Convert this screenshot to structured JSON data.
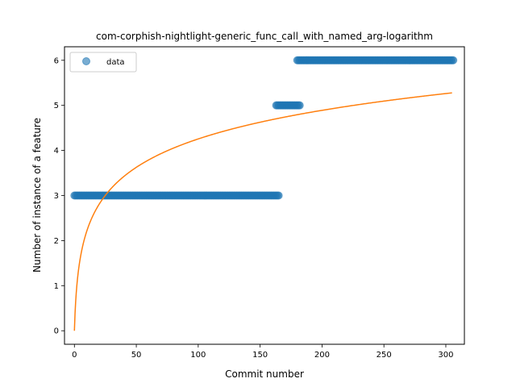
{
  "chart_data": {
    "type": "scatter",
    "title": "com-corphish-nightlight-generic_func_call_with_named_arg-logarithm",
    "xlabel": "Commit number",
    "ylabel": "Number of instance of a feature",
    "xlim": [
      -8,
      315
    ],
    "ylim": [
      -0.3,
      6.3
    ],
    "xticks": [
      0,
      50,
      100,
      150,
      200,
      250,
      300
    ],
    "yticks": [
      0,
      1,
      2,
      3,
      4,
      5,
      6
    ],
    "legend": {
      "position": "top-left",
      "entries": [
        "data"
      ]
    },
    "grid": false,
    "series": [
      {
        "name": "data",
        "kind": "scatter",
        "color": "#1f77b4",
        "alpha": 0.6,
        "segments": [
          {
            "x_start": 0,
            "x_end": 165,
            "y": 3
          },
          {
            "x_start": 163,
            "x_end": 182,
            "y": 5
          },
          {
            "x_start": 180,
            "x_end": 306,
            "y": 6
          }
        ]
      },
      {
        "name": "",
        "kind": "line",
        "color": "#ff7f0e",
        "fit": "logarithmic",
        "formula": "y = 0.922 * ln(x + 1)",
        "x_range": [
          0,
          305
        ]
      }
    ]
  }
}
